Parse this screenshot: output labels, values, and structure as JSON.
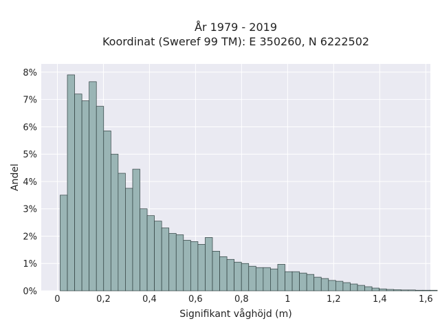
{
  "chart_data": {
    "type": "bar",
    "title_lines": [
      "År 1979 - 2019",
      "Koordinat (Sweref 99 TM): E 350260, N 6222502"
    ],
    "xlabel": "Signifikant våghöjd (m)",
    "ylabel": "Andel",
    "xlim": [
      -0.07,
      1.62
    ],
    "ylim": [
      0,
      8.3
    ],
    "x_ticks": [
      0,
      0.2,
      0.4,
      0.6,
      0.8,
      1.0,
      1.2,
      1.4,
      1.6
    ],
    "x_tick_labels": [
      "0",
      "0,2",
      "0,4",
      "0,6",
      "0,8",
      "1",
      "1,2",
      "1,4",
      "1,6"
    ],
    "y_ticks": [
      0,
      1,
      2,
      3,
      4,
      5,
      6,
      7,
      8
    ],
    "y_tick_labels": [
      "0%",
      "1%",
      "2%",
      "3%",
      "4%",
      "5%",
      "6%",
      "7%",
      "8%"
    ],
    "bin_start": 0.012,
    "bin_width": 0.0315,
    "values": [
      3.5,
      7.9,
      7.2,
      6.95,
      7.65,
      6.75,
      5.85,
      5.0,
      4.3,
      3.75,
      4.45,
      3.0,
      2.75,
      2.55,
      2.3,
      2.1,
      2.05,
      1.85,
      1.8,
      1.7,
      1.95,
      1.45,
      1.25,
      1.15,
      1.05,
      1.0,
      0.9,
      0.85,
      0.85,
      0.8,
      0.97,
      0.7,
      0.7,
      0.65,
      0.6,
      0.5,
      0.45,
      0.38,
      0.35,
      0.3,
      0.25,
      0.2,
      0.15,
      0.1,
      0.07,
      0.05,
      0.04,
      0.03,
      0.03,
      0.02,
      0.02,
      0.02
    ],
    "grid": true,
    "colors": {
      "background": "#eaeaf2",
      "bar_fill": "#9ab5b5",
      "bar_edge": "#2f3f3f",
      "grid": "#ffffff",
      "text": "#222222"
    }
  }
}
